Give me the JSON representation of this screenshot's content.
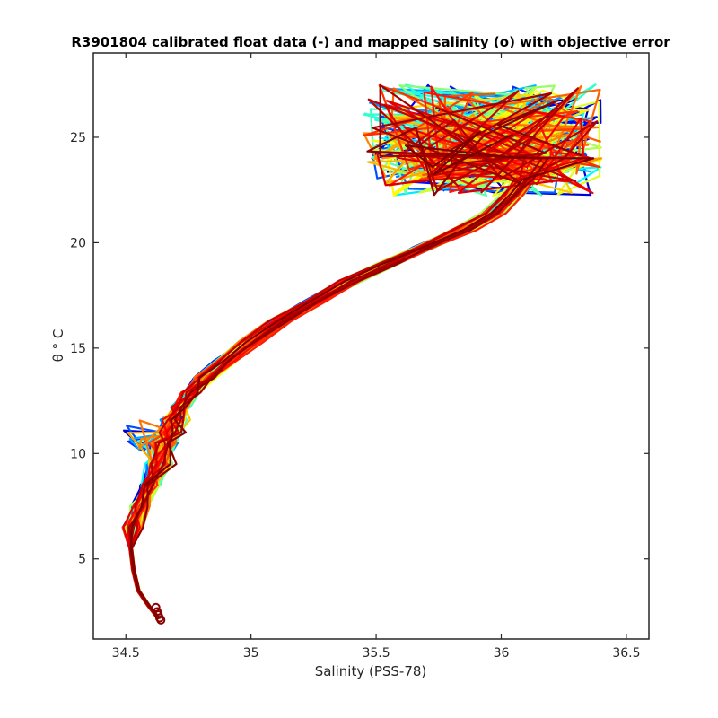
{
  "chart_data": {
    "type": "line",
    "title": "R3901804 calibrated float data (-) and mapped salinity (o) with objective error",
    "xlabel": "Salinity (PSS-78)",
    "ylabel": "θ ° C",
    "xlim": [
      34.37,
      36.59
    ],
    "ylim": [
      1.2,
      29.0
    ],
    "x_ticks": [
      "34.5",
      "35",
      "35.5",
      "36",
      "36.5"
    ],
    "y_ticks": [
      "5",
      "10",
      "15",
      "20",
      "25"
    ],
    "grid": false,
    "legend": "none",
    "colormap": [
      "#00008f",
      "#0000ff",
      "#0080ff",
      "#00ffff",
      "#80ff80",
      "#ffff00",
      "#ff8000",
      "#ff0000",
      "#800000"
    ],
    "series_count": 60,
    "deep_trunk": {
      "x": [
        34.63,
        34.59,
        34.55,
        34.53,
        34.52,
        34.53,
        34.56,
        34.6,
        34.63,
        34.65,
        34.67,
        34.69,
        34.72,
        34.76,
        34.82,
        34.9,
        35.0,
        35.12,
        35.25,
        35.4,
        35.55,
        35.7,
        35.85,
        35.97,
        36.05,
        36.1
      ],
      "y": [
        2.2,
        2.8,
        3.5,
        4.5,
        5.5,
        6.5,
        7.5,
        8.5,
        9.5,
        10.5,
        11.0,
        11.6,
        12.2,
        12.9,
        13.6,
        14.4,
        15.3,
        16.3,
        17.2,
        18.2,
        19.0,
        19.8,
        20.6,
        21.4,
        22.3,
        23.0
      ]
    },
    "mapped_points": {
      "x": [
        34.62,
        34.625,
        34.63,
        34.635,
        34.64
      ],
      "y": [
        2.7,
        2.5,
        2.35,
        2.2,
        2.1
      ]
    }
  }
}
